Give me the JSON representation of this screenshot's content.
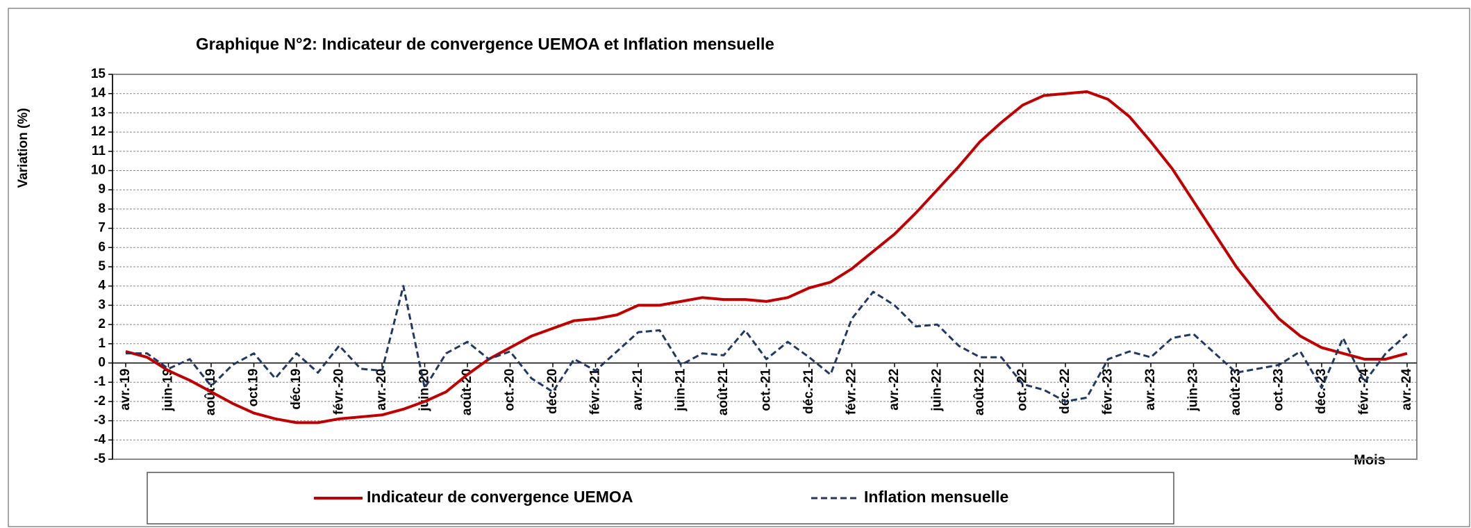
{
  "chart_data": {
    "type": "line",
    "title": "Graphique N°2: Indicateur de convergence UEMOA et Inflation mensuelle",
    "y_label": "Variation (%)",
    "x_label": "Mois",
    "categories": [
      "avr.-19",
      null,
      "juin-19",
      null,
      "août-19",
      null,
      "oct.19",
      null,
      "déc.19",
      null,
      "févr.-20",
      null,
      "avr.-20",
      null,
      "juin-20",
      null,
      "août-20",
      null,
      "oct.-20",
      null,
      "déc.-20",
      null,
      "févr.-21",
      null,
      "avr.-21",
      null,
      "juin-21",
      null,
      "août-21",
      null,
      "oct.-21",
      null,
      "déc.-21",
      null,
      "févr.-22",
      null,
      "avr.-22",
      null,
      "juin-22",
      null,
      "août-22",
      null,
      "oct.-22",
      null,
      "déc.-22",
      null,
      "févr.-23",
      null,
      "avr.-23",
      null,
      "juin-23",
      null,
      "août-23",
      null,
      "oct.-23",
      null,
      "déc.-23",
      null,
      "févr.-24",
      null,
      "avr.-24"
    ],
    "series": [
      {
        "name": "Indicateur de convergence UEMOA",
        "color": "#c00000",
        "dash": false,
        "values": [
          0.6,
          0.3,
          -0.4,
          -0.9,
          -1.5,
          -2.1,
          -2.6,
          -2.9,
          -3.1,
          -3.1,
          -2.9,
          -2.8,
          -2.7,
          -2.4,
          -2.0,
          -1.5,
          -0.6,
          0.2,
          0.8,
          1.4,
          1.8,
          2.2,
          2.3,
          2.5,
          3.0,
          3.0,
          3.2,
          3.4,
          3.3,
          3.3,
          3.2,
          3.4,
          3.9,
          4.2,
          4.9,
          5.8,
          6.7,
          7.8,
          9.0,
          10.2,
          11.5,
          12.5,
          13.4,
          13.9,
          14.0,
          14.1,
          13.7,
          12.8,
          11.5,
          10.1,
          8.4,
          6.7,
          5.0,
          3.6,
          2.3,
          1.4,
          0.8,
          0.5,
          0.2,
          0.2,
          0.5
        ]
      },
      {
        "name": "Inflation mensuelle",
        "color": "#1f3864",
        "dash": true,
        "values": [
          0.5,
          0.5,
          -0.3,
          0.2,
          -1.2,
          -0.1,
          0.5,
          -0.8,
          0.5,
          -0.5,
          0.9,
          -0.3,
          -0.4,
          4.0,
          -1.3,
          0.5,
          1.1,
          0.2,
          0.6,
          -0.8,
          -1.5,
          0.2,
          -0.4,
          0.6,
          1.6,
          1.7,
          -0.1,
          0.5,
          0.4,
          1.7,
          0.2,
          1.1,
          0.3,
          -0.6,
          2.3,
          3.7,
          3.0,
          1.9,
          2.0,
          0.9,
          0.3,
          0.3,
          -1.1,
          -1.4,
          -2.0,
          -1.8,
          0.2,
          0.6,
          0.3,
          1.3,
          1.5,
          0.5,
          -0.5,
          -0.3,
          -0.1,
          0.6,
          -1.3,
          1.3,
          -1.0,
          0.5,
          1.5
        ]
      }
    ],
    "ylim": [
      -5,
      15
    ],
    "yticks": [
      -5,
      -4,
      -3,
      -2,
      -1,
      0,
      1,
      2,
      3,
      4,
      5,
      6,
      7,
      8,
      9,
      10,
      11,
      12,
      13,
      14,
      15
    ],
    "grid": true
  }
}
